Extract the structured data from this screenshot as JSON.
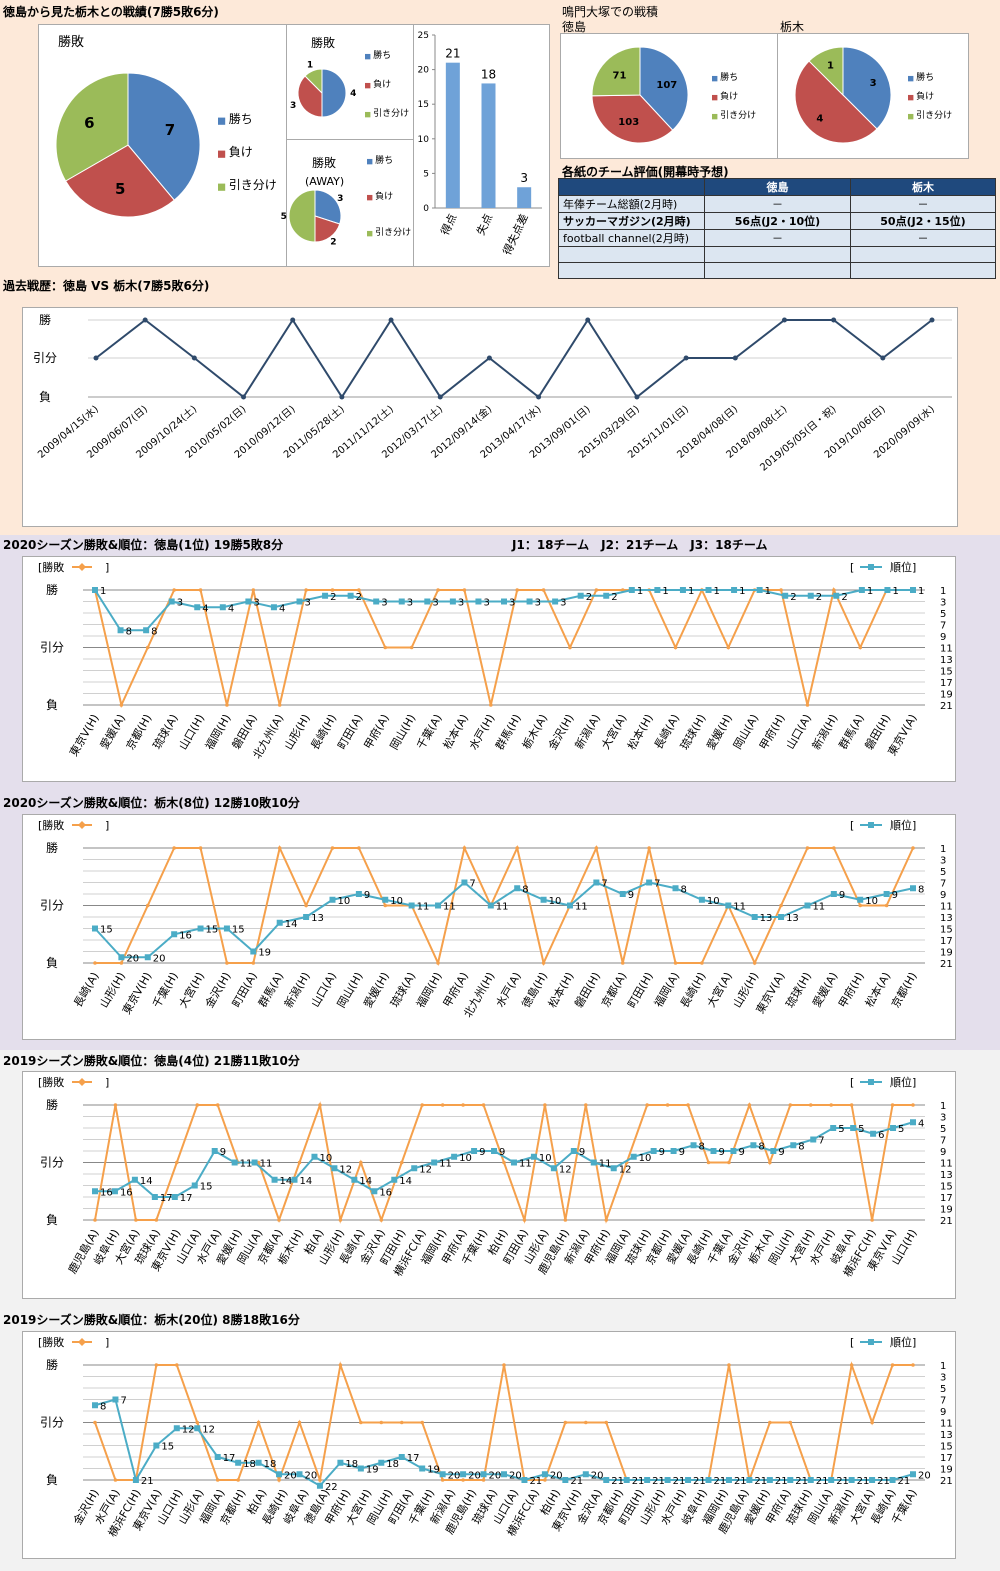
{
  "top": {
    "title": "徳島から見た栃木との戦績(7勝5敗6分)",
    "naruto_title": "鳴門大塚での戦積",
    "naruto_left_label": "徳島",
    "naruto_right_label": "栃木",
    "legend_labels": [
      "勝ち",
      "負け",
      "引き分け"
    ]
  },
  "eval_table": {
    "title": "各紙のチーム評価(開幕時予想)",
    "headers": [
      "",
      "徳島",
      "栃木"
    ],
    "rows": [
      [
        "年俸チーム総額(2月時)",
        "－",
        "－"
      ],
      [
        "サッカーマガジン(2月時)",
        "56点(J2・10位)",
        "50点(J2・15位)"
      ],
      [
        "football channel(2月時)",
        "－",
        "－"
      ],
      [
        "",
        "",
        ""
      ],
      [
        "",
        "",
        ""
      ]
    ]
  },
  "history_title": "過去戦歴：徳島 VS 栃木(7勝5敗6分)",
  "result_axis_labels": [
    "勝",
    "引分",
    "負"
  ],
  "legend_result": "勝敗",
  "legend_rank": "順位",
  "league_note": "J1：18チーム　J2：21チーム　J3：18チーム",
  "chart_data": [
    {
      "id": "pie_total",
      "type": "pie",
      "title": "勝敗",
      "categories": [
        "勝ち",
        "負け",
        "引き分け"
      ],
      "values": [
        7,
        5,
        6
      ],
      "colors": [
        "#4f81bd",
        "#c0504d",
        "#9bbb59"
      ]
    },
    {
      "id": "pie_home",
      "type": "pie",
      "title": "勝敗",
      "categories": [
        "勝ち",
        "負け",
        "引き分け"
      ],
      "values": [
        4,
        3,
        1
      ],
      "colors": [
        "#4f81bd",
        "#c0504d",
        "#9bbb59"
      ]
    },
    {
      "id": "pie_away",
      "type": "pie",
      "title": "勝敗\n(AWAY)",
      "categories": [
        "勝ち",
        "負け",
        "引き分け"
      ],
      "values": [
        3,
        2,
        5
      ],
      "colors": [
        "#4f81bd",
        "#c0504d",
        "#9bbb59"
      ]
    },
    {
      "id": "bar_goals",
      "type": "bar",
      "categories": [
        "得点",
        "失点",
        "得失点差"
      ],
      "values": [
        21,
        18,
        3
      ],
      "ylim": [
        0,
        25
      ],
      "yticks": [
        0,
        5,
        10,
        15,
        20,
        25
      ],
      "color": "#6fa2d8"
    },
    {
      "id": "pie_naruto_tokushima",
      "type": "pie",
      "categories": [
        "勝ち",
        "負け",
        "引き分け"
      ],
      "values": [
        107,
        103,
        71
      ],
      "colors": [
        "#4f81bd",
        "#c0504d",
        "#9bbb59"
      ]
    },
    {
      "id": "pie_naruto_tochigi",
      "type": "pie",
      "categories": [
        "勝ち",
        "負け",
        "引き分け"
      ],
      "values": [
        3,
        4,
        1
      ],
      "colors": [
        "#4f81bd",
        "#c0504d",
        "#9bbb59"
      ]
    },
    {
      "id": "history",
      "type": "line",
      "categories": [
        "2009/04/15(水)",
        "2009/06/07(日)",
        "2009/10/24(土)",
        "2010/05/02(日)",
        "2010/09/12(日)",
        "2011/05/28(土)",
        "2011/11/12(土)",
        "2012/03/17(土)",
        "2012/09/14(金)",
        "2013/04/17(水)",
        "2013/09/01(日)",
        "2015/03/29(日)",
        "2015/11/01(日)",
        "2018/04/08(日)",
        "2018/09/08(土)",
        "2019/05/05(日・祝)",
        "2019/10/06(日)",
        "2020/09/09(水)"
      ],
      "results": [
        0,
        1,
        0,
        -1,
        1,
        -1,
        1,
        -1,
        0,
        -1,
        1,
        -1,
        0,
        0,
        1,
        1,
        0,
        1
      ],
      "color": "#2f4a6b"
    },
    {
      "id": "season_2020_tokushima",
      "type": "line",
      "title": "2020シーズン勝敗&順位：徳島(1位) 19勝5敗8分",
      "categories": [
        "東京V(H)",
        "愛媛(A)",
        "京都(H)",
        "琉球(A)",
        "山口(H)",
        "福岡(H)",
        "磐田(A)",
        "北九州(A)",
        "山形(H)",
        "長崎(H)",
        "町田(A)",
        "甲府(A)",
        "岡山(H)",
        "千葉(A)",
        "松本(A)",
        "水戸(H)",
        "群馬(H)",
        "栃木(A)",
        "金沢(H)",
        "新潟(A)",
        "大宮(A)",
        "松本(H)",
        "長崎(A)",
        "琉球(H)",
        "愛媛(H)",
        "岡山(A)",
        "甲府(H)",
        "山口(A)",
        "新潟(H)",
        "群馬(A)",
        "磐田(H)",
        "東京V(A)"
      ],
      "results": [
        1,
        -1,
        0,
        1,
        1,
        -1,
        1,
        -1,
        1,
        1,
        1,
        0,
        0,
        1,
        1,
        -1,
        1,
        1,
        0,
        1,
        1,
        1,
        0,
        1,
        0,
        1,
        1,
        -1,
        1,
        0,
        1,
        1
      ],
      "ranks": [
        1,
        8,
        8,
        3,
        4,
        4,
        3,
        4,
        3,
        2,
        2,
        3,
        3,
        3,
        3,
        3,
        3,
        3,
        3,
        2,
        2,
        1,
        1,
        1,
        1,
        1,
        1,
        2,
        2,
        2,
        1,
        1,
        1
      ]
    },
    {
      "id": "season_2020_tochigi",
      "type": "line",
      "title": "2020シーズン勝敗&順位：栃木(8位) 12勝10敗10分",
      "categories": [
        "長崎(A)",
        "山形(H)",
        "東京V(H)",
        "千葉(H)",
        "大宮(H)",
        "金沢(H)",
        "町田(A)",
        "群馬(A)",
        "新潟(H)",
        "山口(A)",
        "岡山(H)",
        "愛媛(H)",
        "琉球(A)",
        "福岡(H)",
        "甲府(A)",
        "北九州(H)",
        "水戸(A)",
        "徳島(H)",
        "松本(H)",
        "磐田(H)",
        "京都(A)",
        "町田(H)",
        "福岡(A)",
        "長崎(H)",
        "大宮(A)",
        "山形(H)",
        "東京V(A)",
        "琉球(H)",
        "愛媛(A)",
        "甲府(H)",
        "松本(A)",
        "京都(H)"
      ],
      "results": [
        -1,
        -1,
        0,
        1,
        1,
        -1,
        -1,
        1,
        0,
        1,
        1,
        0,
        0,
        -1,
        1,
        0,
        1,
        -1,
        0,
        1,
        -1,
        1,
        -1,
        -1,
        0,
        -1,
        0,
        1,
        1,
        0,
        0,
        1
      ],
      "ranks": [
        15,
        20,
        20,
        16,
        15,
        15,
        19,
        14,
        13,
        10,
        9,
        10,
        11,
        11,
        7,
        11,
        8,
        10,
        11,
        7,
        9,
        7,
        8,
        10,
        11,
        13,
        13,
        11,
        9,
        10,
        9,
        8
      ]
    },
    {
      "id": "season_2019_tokushima",
      "type": "line",
      "title": "2019シーズン勝敗&順位：徳島(4位) 21勝11敗10分",
      "categories": [
        "鹿児島(A)",
        "岐阜(H)",
        "大宮(A)",
        "琉球(A)",
        "東京V(H)",
        "山口(A)",
        "水戸(A)",
        "愛媛(H)",
        "岡山(A)",
        "京都(A)",
        "栃木(H)",
        "柏(A)",
        "山形(H)",
        "長崎(A)",
        "金沢(A)",
        "町田(H)",
        "横浜FC(A)",
        "福岡(H)",
        "甲府(A)",
        "千葉(H)",
        "柏(H)",
        "町田(A)",
        "山形(A)",
        "鹿児島(H)",
        "新潟(A)",
        "甲府(H)",
        "福岡(A)",
        "琉球(H)",
        "京都(H)",
        "愛媛(A)",
        "長崎(H)",
        "千葉(A)",
        "金沢(H)",
        "栃木(A)",
        "岡山(H)",
        "大宮(H)",
        "水戸(H)",
        "岐阜(A)",
        "横浜FC(H)",
        "東京V(A)",
        "山口(H)"
      ],
      "results": [
        -1,
        1,
        -1,
        -1,
        0,
        1,
        1,
        0,
        0,
        -1,
        0,
        1,
        -1,
        0,
        -1,
        0,
        1,
        1,
        1,
        1,
        0,
        -1,
        1,
        -1,
        1,
        -1,
        0,
        1,
        1,
        1,
        0,
        0,
        1,
        0,
        1,
        1,
        1,
        1,
        -1,
        1,
        1
      ],
      "ranks": [
        16,
        16,
        14,
        17,
        17,
        15,
        9,
        11,
        11,
        14,
        14,
        10,
        12,
        14,
        16,
        14,
        12,
        11,
        10,
        9,
        9,
        11,
        10,
        12,
        9,
        11,
        12,
        10,
        9,
        9,
        8,
        9,
        9,
        8,
        9,
        8,
        7,
        5,
        5,
        6,
        5,
        4
      ]
    },
    {
      "id": "season_2019_tochigi",
      "type": "line",
      "title": "2019シーズン勝敗&順位：栃木(20位) 8勝18敗16分",
      "categories": [
        "金沢(H)",
        "水戸(A)",
        "横浜FC(H)",
        "東京V(A)",
        "山口(H)",
        "山形(A)",
        "福岡(A)",
        "京都(H)",
        "柏(A)",
        "長崎(H)",
        "岐阜(A)",
        "徳島(A)",
        "甲府(H)",
        "大宮(H)",
        "岡山(H)",
        "町田(A)",
        "千葉(H)",
        "新潟(A)",
        "鹿児島(H)",
        "琉球(A)",
        "山口(A)",
        "横浜FC(A)",
        "柏(H)",
        "東京V(H)",
        "金沢(A)",
        "京都(H)",
        "町田(H)",
        "山形(H)",
        "水戸(H)",
        "岐阜(H)",
        "福岡(H)",
        "鹿児島(A)",
        "愛媛(H)",
        "甲府(A)",
        "琉球(H)",
        "岡山(A)",
        "新潟(H)",
        "大宮(A)",
        "長崎(A)",
        "千葉(A)"
      ],
      "results": [
        0,
        -1,
        -1,
        1,
        1,
        0,
        -1,
        -1,
        0,
        -1,
        0,
        -1,
        1,
        0,
        0,
        0,
        0,
        -1,
        -1,
        -1,
        1,
        -1,
        -1,
        0,
        0,
        0,
        -1,
        -1,
        -1,
        -1,
        -1,
        1,
        -1,
        0,
        0,
        -1,
        -1,
        1,
        0,
        1,
        1
      ],
      "ranks": [
        8,
        7,
        21,
        15,
        12,
        12,
        17,
        18,
        18,
        20,
        20,
        22,
        18,
        19,
        18,
        17,
        19,
        20,
        20,
        20,
        20,
        21,
        20,
        21,
        20,
        21,
        21,
        21,
        21,
        21,
        21,
        21,
        21,
        21,
        21,
        21,
        21,
        21,
        21,
        21,
        20
      ]
    }
  ]
}
